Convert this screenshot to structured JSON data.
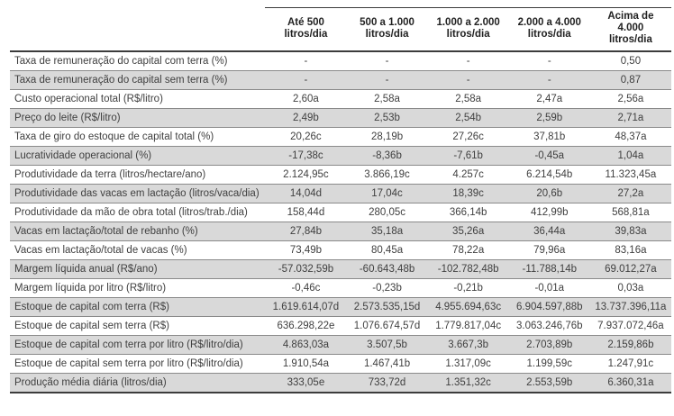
{
  "table": {
    "columns": [
      "Até 500 litros/dia",
      "500 a 1.000 litros/dia",
      "1.000 a 2.000 litros/dia",
      "2.000 a 4.000 litros/dia",
      "Acima de 4.000 litros/dia"
    ],
    "rows": [
      {
        "label": "Taxa de remuneração do capital com terra (%)",
        "values": [
          "-",
          "-",
          "-",
          "-",
          "0,50"
        ]
      },
      {
        "label": "Taxa de remuneração do capital sem terra (%)",
        "values": [
          "-",
          "-",
          "-",
          "-",
          "0,87"
        ]
      },
      {
        "label": "Custo operacional total (R$/litro)",
        "values": [
          "2,60a",
          "2,58a",
          "2,58a",
          "2,47a",
          "2,56a"
        ]
      },
      {
        "label": "Preço do leite (R$/litro)",
        "values": [
          "2,49b",
          "2,53b",
          "2,54b",
          "2,59b",
          "2,71a"
        ]
      },
      {
        "label": "Taxa de giro do estoque de capital total (%)",
        "values": [
          "20,26c",
          "28,19b",
          "27,26c",
          "37,81b",
          "48,37a"
        ]
      },
      {
        "label": "Lucratividade operacional (%)",
        "values": [
          "-17,38c",
          "-8,36b",
          "-7,61b",
          "-0,45a",
          "1,04a"
        ]
      },
      {
        "label": "Produtividade da terra (litros/hectare/ano)",
        "values": [
          "2.124,95c",
          "3.866,19c",
          "4.257c",
          "6.214,54b",
          "11.323,45a"
        ]
      },
      {
        "label": "Produtividade das vacas em lactação (litros/vaca/dia)",
        "values": [
          "14,04d",
          "17,04c",
          "18,39c",
          "20,6b",
          "27,2a"
        ]
      },
      {
        "label": "Produtividade da mão de obra total (litros/trab./dia)",
        "values": [
          "158,44d",
          "280,05c",
          "366,14b",
          "412,99b",
          "568,81a"
        ]
      },
      {
        "label": "Vacas em lactação/total de rebanho (%)",
        "values": [
          "27,84b",
          "35,18a",
          "35,26a",
          "36,44a",
          "39,83a"
        ]
      },
      {
        "label": "Vacas em lactação/total de vacas (%)",
        "values": [
          "73,49b",
          "80,45a",
          "78,22a",
          "79,96a",
          "83,16a"
        ]
      },
      {
        "label": "Margem líquida anual (R$/ano)",
        "values": [
          "-57.032,59b",
          "-60.643,48b",
          "-102.782,48b",
          "-11.788,14b",
          "69.012,27a"
        ]
      },
      {
        "label": "Margem líquida por litro (R$/litro)",
        "values": [
          "-0,46c",
          "-0,23b",
          "-0,21b",
          "-0,01a",
          "0,03a"
        ]
      },
      {
        "label": "Estoque de capital com terra (R$)",
        "values": [
          "1.619.614,07d",
          "2.573.535,15d",
          "4.955.694,63c",
          "6.904.597,88b",
          "13.737.396,11a"
        ]
      },
      {
        "label": "Estoque de capital sem terra (R$)",
        "values": [
          "636.298,22e",
          "1.076.674,57d",
          "1.779.817,04c",
          "3.063.246,76b",
          "7.937.072,46a"
        ]
      },
      {
        "label": "Estoque de capital com terra por litro (R$/litro/dia)",
        "values": [
          "4.863,03a",
          "3.507,5b",
          "3.667,3b",
          "2.703,89b",
          "2.159,86b"
        ]
      },
      {
        "label": "Estoque de capital sem terra por litro (R$/litro/dia)",
        "values": [
          "1.910,54a",
          "1.467,41b",
          "1.317,09c",
          "1.199,59c",
          "1.247,91c"
        ]
      },
      {
        "label": "Produção média diária (litros/dia)",
        "values": [
          "333,05e",
          "733,72d",
          "1.351,32c",
          "2.553,59b",
          "6.360,31a"
        ]
      }
    ]
  }
}
